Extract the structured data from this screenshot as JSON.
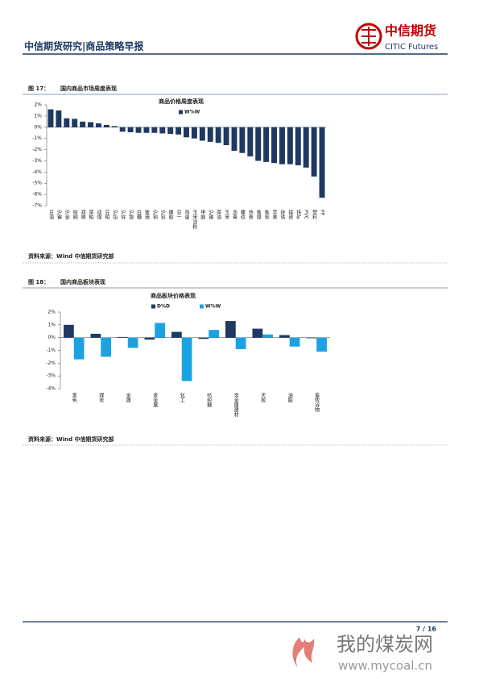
{
  "header": {
    "title": "中信期货研究|商品策略早报",
    "logo_cn": "中信期货",
    "logo_en": "CITIC Futures"
  },
  "figures": [
    {
      "number": "图 17：",
      "caption": "国内商品市场周度表现",
      "source": "资料来源：Wind 中信期货研究部"
    },
    {
      "number": "图 18：",
      "caption": "国内商品板块表现",
      "source": "资料来源：Wind 中信期货研究部"
    }
  ],
  "chart_data": [
    {
      "type": "bar",
      "title": "商品价格周度表现",
      "categories": [
        "豆油",
        "沪镍",
        "沪金",
        "棕榈",
        "郑棉",
        "菜粕",
        "动煤",
        "豆粕",
        "沪铅",
        "沪锌",
        "沪银",
        "白糖",
        "玻璃",
        "沪铜",
        "沪铝",
        "橡胶",
        "豆一",
        "鸡蛋",
        "玉米淀粉",
        "甲醇",
        "沪锡",
        "菜油",
        "玉米",
        "沥青",
        "螺纹",
        "热卷",
        "焦煤",
        "焦炭",
        "苹果",
        "硅铁",
        "锰硅",
        "铁矿",
        "PVC",
        "塑料",
        "PP"
      ],
      "series": [
        {
          "name": "W%W",
          "color": "#1f3864",
          "values": [
            1.6,
            1.5,
            0.8,
            0.75,
            0.5,
            0.45,
            0.35,
            0.2,
            0.1,
            -0.4,
            -0.45,
            -0.5,
            -0.5,
            -0.5,
            -0.55,
            -0.6,
            -0.65,
            -0.9,
            -1.0,
            -1.2,
            -1.3,
            -1.4,
            -1.6,
            -2.1,
            -2.3,
            -2.6,
            -3.0,
            -3.1,
            -3.2,
            -3.3,
            -3.3,
            -3.4,
            -3.6,
            -4.4,
            -6.3
          ]
        }
      ],
      "ylim": [
        -7,
        2
      ],
      "yticks": [
        {
          "value": 2,
          "label": "2%"
        },
        {
          "value": 1,
          "label": "1%"
        },
        {
          "value": 0,
          "label": "0%"
        },
        {
          "value": -1,
          "label": "-1%"
        },
        {
          "value": -2,
          "label": "-2%"
        },
        {
          "value": -3,
          "label": "-3%"
        },
        {
          "value": -4,
          "label": "-4%"
        },
        {
          "value": -5,
          "label": "-5%"
        },
        {
          "value": -6,
          "label": "-6%"
        },
        {
          "value": -7,
          "label": "-7%"
        }
      ]
    },
    {
      "type": "bar",
      "title": "商品板块价格表现",
      "categories": [
        "黑色",
        "煤炭",
        "金属",
        "贵金属",
        "化工",
        "纺织糖",
        "非金属建材",
        "天胶",
        "油脂",
        "畜牧谷物"
      ],
      "series": [
        {
          "name": "D%D",
          "color": "#1f3864",
          "values": [
            1.0,
            0.3,
            0.05,
            -0.15,
            0.45,
            -0.1,
            1.3,
            0.7,
            0.2,
            -0.05
          ]
        },
        {
          "name": "W%W",
          "color": "#1aa3e0",
          "values": [
            -1.7,
            -1.5,
            -0.8,
            1.15,
            -3.4,
            0.6,
            -0.9,
            0.25,
            -0.7,
            -1.1
          ]
        }
      ],
      "ylim": [
        -4,
        2
      ],
      "yticks": [
        {
          "value": 2,
          "label": "2%"
        },
        {
          "value": 1,
          "label": "1%"
        },
        {
          "value": 0,
          "label": "0%"
        },
        {
          "value": -1,
          "label": "-1%"
        },
        {
          "value": -2,
          "label": "-2%"
        },
        {
          "value": -3,
          "label": "-3%"
        },
        {
          "value": -4,
          "label": "-4%"
        }
      ]
    }
  ],
  "footer": {
    "page": "7 / 16"
  },
  "watermark": {
    "name": "我的煤炭网",
    "url": "www.mycoal.cn"
  }
}
